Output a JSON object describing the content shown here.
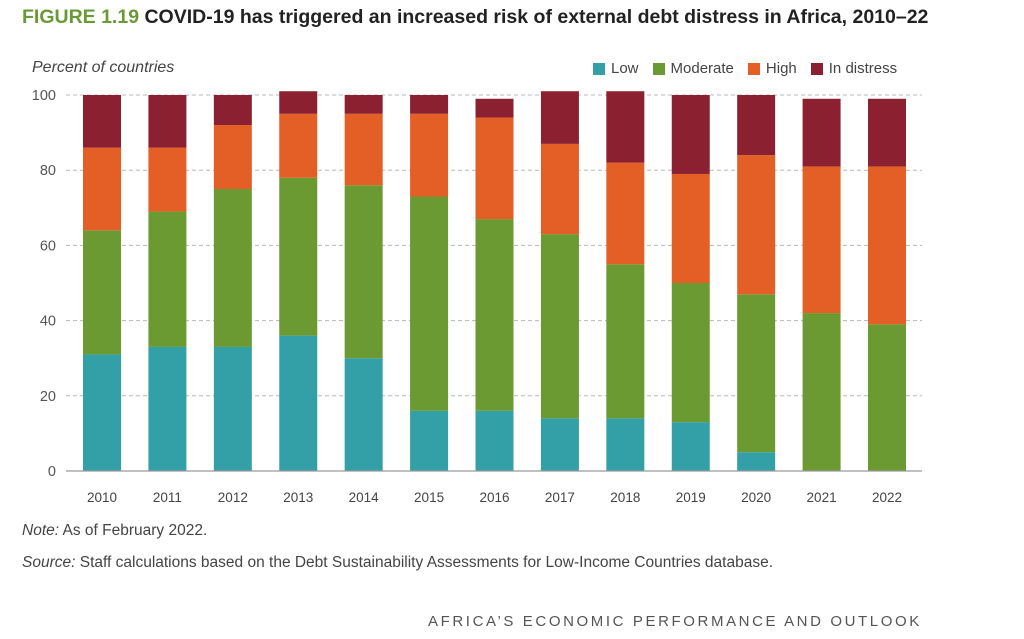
{
  "header": {
    "figure_label": "FIGURE 1.19",
    "title": "COVID-19 has triggered an increased risk of external debt distress in Africa, 2010–22"
  },
  "notes": {
    "note_label": "Note:",
    "note_text": " As of February 2022.",
    "source_label": "Source:",
    "source_text": " Staff calculations based on the Debt Sustainability Assessments for Low-Income Countries database."
  },
  "footer": {
    "running_head": "AFRICA’S ECONOMIC PERFORMANCE AND OUTLOOK"
  },
  "chart_data": {
    "type": "bar",
    "stacked": true,
    "title": "COVID-19 has triggered an increased risk of external debt distress in Africa, 2010–22",
    "xlabel": "",
    "ylabel": "Percent of countries",
    "ylim": [
      0,
      100
    ],
    "yticks": [
      0,
      20,
      40,
      60,
      80,
      100
    ],
    "grid": true,
    "legend_position": "top-right",
    "categories": [
      "2010",
      "2011",
      "2012",
      "2013",
      "2014",
      "2015",
      "2016",
      "2017",
      "2018",
      "2019",
      "2020",
      "2021",
      "2022"
    ],
    "series": [
      {
        "name": "Low",
        "color": "#33a0a8",
        "values": [
          31,
          33,
          33,
          36,
          30,
          16,
          16,
          14,
          14,
          13,
          5,
          0,
          0
        ]
      },
      {
        "name": "Moderate",
        "color": "#6b9a33",
        "values": [
          33,
          36,
          42,
          42,
          46,
          57,
          51,
          49,
          41,
          37,
          42,
          42,
          39
        ]
      },
      {
        "name": "High",
        "color": "#e35f25",
        "values": [
          22,
          17,
          17,
          17,
          19,
          22,
          27,
          24,
          27,
          29,
          37,
          39,
          42
        ]
      },
      {
        "name": "In distress",
        "color": "#8b2030",
        "values": [
          14,
          14,
          8,
          6,
          5,
          5,
          5,
          14,
          19,
          21,
          16,
          18,
          18
        ]
      }
    ]
  }
}
